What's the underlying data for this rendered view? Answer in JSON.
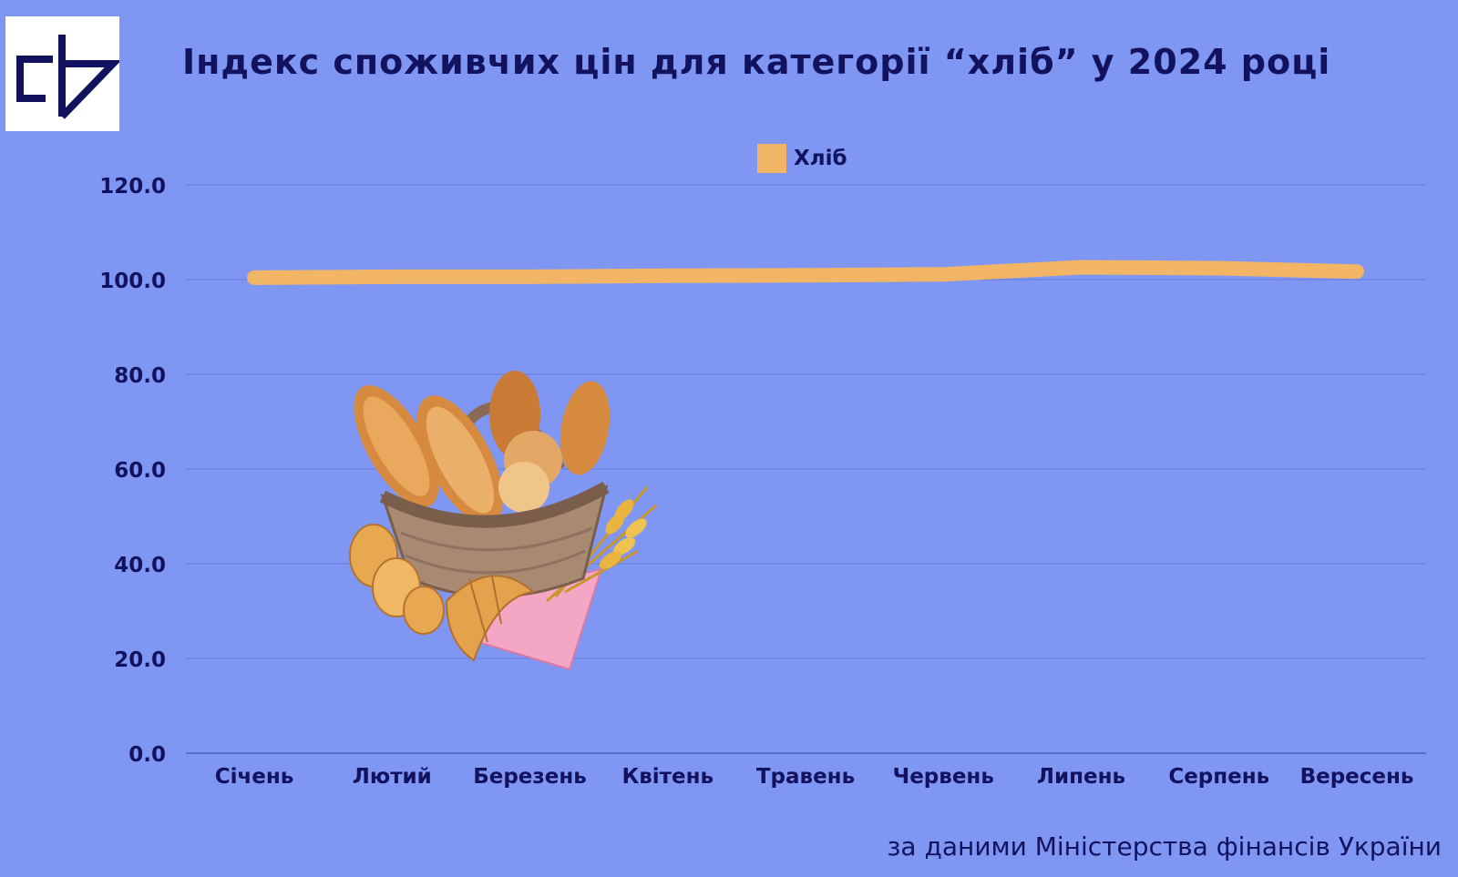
{
  "logo": {
    "icon": "cf-logo-icon"
  },
  "chart_data": {
    "type": "line",
    "title": "Індекс споживчих цін для категорії “хліб” у 2024 році",
    "categories": [
      "Січень",
      "Лютий",
      "Березень",
      "Квітень",
      "Травень",
      "Червень",
      "Липень",
      "Серпень",
      "Вересень"
    ],
    "series": [
      {
        "name": "Хліб",
        "color": "#f2b565",
        "values": [
          100.4,
          100.6,
          100.6,
          100.8,
          100.9,
          101.1,
          102.6,
          102.4,
          101.7
        ]
      }
    ],
    "yticks": [
      "0.0",
      "20.0",
      "40.0",
      "60.0",
      "80.0",
      "100.0",
      "120.0"
    ],
    "ylim": [
      0,
      120
    ],
    "grid": true,
    "legend": "top-center",
    "illustration": "bread-basket-icon",
    "source": "за даними Міністерства фінансів України"
  }
}
